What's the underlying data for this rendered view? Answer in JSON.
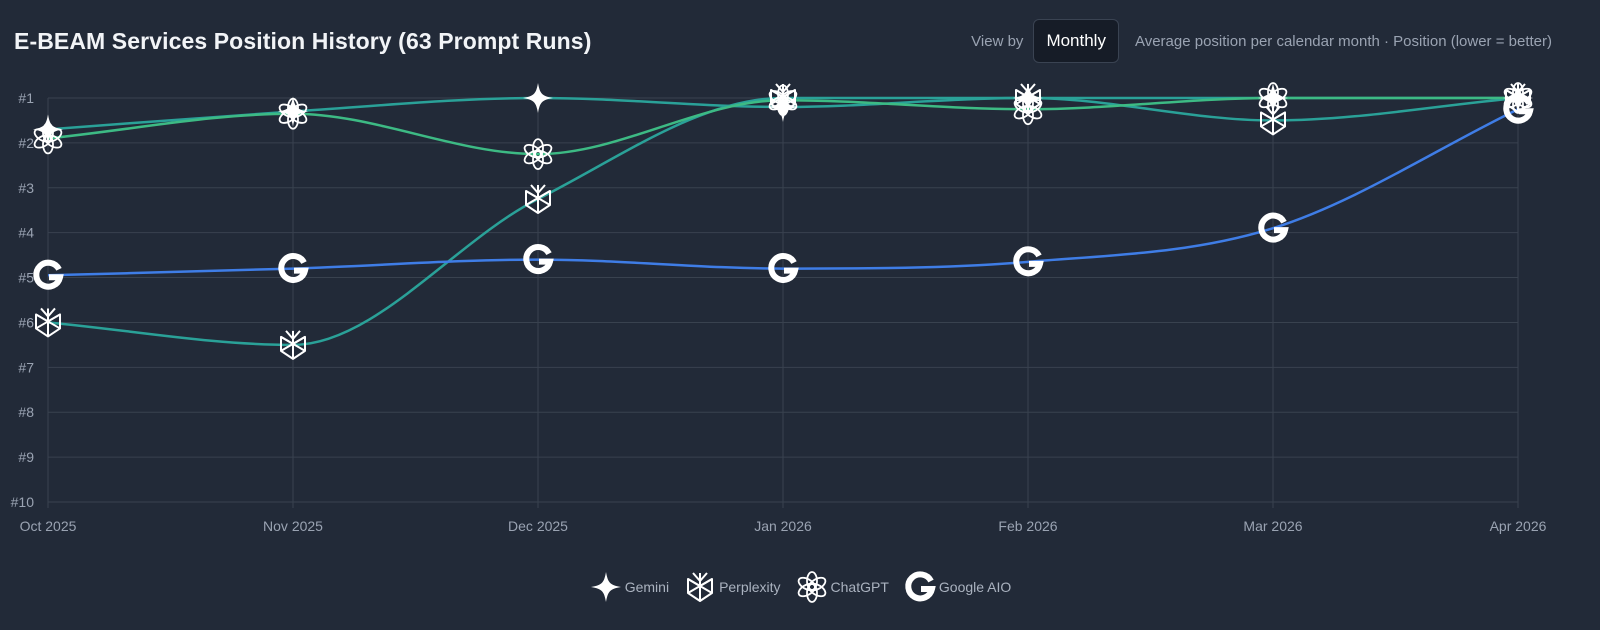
{
  "header": {
    "title": "E-BEAM Services Position History (63 Prompt Runs)",
    "view_by_label": "View by",
    "view_by_value": "Monthly",
    "subtitle": "Average position per calendar month · Position (lower = better)"
  },
  "chart_data": {
    "type": "line",
    "x": [
      "Oct 2025",
      "Nov 2025",
      "Dec 2025",
      "Jan 2026",
      "Feb 2026",
      "Mar 2026",
      "Apr 2026"
    ],
    "y_ticks": [
      "#1",
      "#2",
      "#3",
      "#4",
      "#5",
      "#6",
      "#7",
      "#8",
      "#9",
      "#10"
    ],
    "ylim": [
      1,
      10
    ],
    "y_inverted": true,
    "grid": true,
    "legend_position": "bottom-center",
    "series": [
      {
        "name": "Gemini",
        "icon": "gemini-icon",
        "color": "#2aa198",
        "values": [
          1.7,
          1.3,
          1.0,
          1.2,
          1.0,
          1.0,
          1.0
        ]
      },
      {
        "name": "Perplexity",
        "icon": "perplexity-icon",
        "color": "#2aa198",
        "values": [
          6.0,
          6.5,
          3.25,
          1.0,
          1.0,
          1.5,
          1.0
        ]
      },
      {
        "name": "ChatGPT",
        "icon": "chatgpt-icon",
        "color": "#3dba84",
        "values": [
          1.9,
          1.35,
          2.25,
          1.05,
          1.25,
          1.0,
          1.0
        ]
      },
      {
        "name": "Google AIO",
        "icon": "google-icon",
        "color": "#3f7de6",
        "values": [
          4.95,
          4.8,
          4.6,
          4.8,
          4.65,
          3.9,
          1.25
        ]
      }
    ]
  }
}
